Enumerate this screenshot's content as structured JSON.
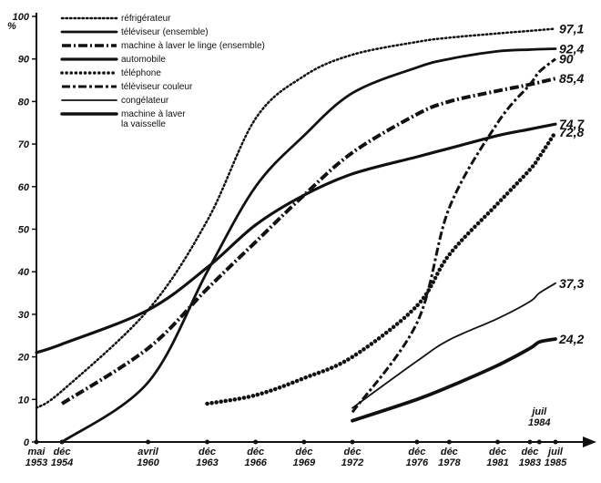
{
  "chart_data": {
    "type": "line",
    "y_unit": "%",
    "ylim": [
      0,
      100
    ],
    "y_ticks": [
      0,
      10,
      20,
      30,
      40,
      50,
      60,
      70,
      80,
      90,
      100
    ],
    "x_ticks": [
      {
        "label": "mai 1953",
        "date": "1953-05"
      },
      {
        "label": "déc 1954",
        "date": "1954-12"
      },
      {
        "label": "avril 1960",
        "date": "1960-04"
      },
      {
        "label": "déc 1963",
        "date": "1963-12"
      },
      {
        "label": "déc 1966",
        "date": "1966-12"
      },
      {
        "label": "déc 1969",
        "date": "1969-12"
      },
      {
        "label": "déc 1972",
        "date": "1972-12"
      },
      {
        "label": "déc 1976",
        "date": "1976-12"
      },
      {
        "label": "déc 1978",
        "date": "1978-12"
      },
      {
        "label": "déc 1981",
        "date": "1981-12"
      },
      {
        "label": "déc 1983",
        "date": "1983-12"
      },
      {
        "label": "juil 1984",
        "date": "1984-07"
      },
      {
        "label": "juil 1985",
        "date": "1985-07"
      }
    ],
    "legend_position": "top-left",
    "grid": false,
    "series": [
      {
        "name": "réfrigérateur",
        "end_label": "97,1",
        "points": [
          [
            "1953-05",
            8
          ],
          [
            "1954-12",
            12
          ],
          [
            "1960-04",
            31
          ],
          [
            "1963-12",
            52
          ],
          [
            "1966-12",
            76
          ],
          [
            "1969-12",
            86
          ],
          [
            "1972-12",
            91
          ],
          [
            "1976-12",
            94
          ],
          [
            "1978-12",
            95
          ],
          [
            "1981-12",
            96
          ],
          [
            "1983-12",
            96.6
          ],
          [
            "1985-07",
            97.1
          ]
        ]
      },
      {
        "name": "téléviseur (ensemble)",
        "end_label": "92,4",
        "points": [
          [
            "1954-12",
            0
          ],
          [
            "1960-04",
            14
          ],
          [
            "1963-12",
            40
          ],
          [
            "1966-12",
            60
          ],
          [
            "1969-12",
            72
          ],
          [
            "1972-12",
            82
          ],
          [
            "1976-12",
            88
          ],
          [
            "1978-12",
            90
          ],
          [
            "1981-12",
            91.8
          ],
          [
            "1983-12",
            92.2
          ],
          [
            "1985-07",
            92.4
          ]
        ]
      },
      {
        "name": "machine à laver le linge (ensemble)",
        "end_label": "85,4",
        "points": [
          [
            "1954-12",
            9
          ],
          [
            "1960-04",
            22
          ],
          [
            "1963-12",
            36
          ],
          [
            "1966-12",
            47
          ],
          [
            "1969-12",
            58
          ],
          [
            "1972-12",
            68
          ],
          [
            "1976-12",
            77
          ],
          [
            "1978-12",
            80
          ],
          [
            "1981-12",
            82.5
          ],
          [
            "1983-12",
            84
          ],
          [
            "1985-07",
            85.4
          ]
        ]
      },
      {
        "name": "automobile",
        "end_label": "74,7",
        "points": [
          [
            "1953-05",
            21
          ],
          [
            "1954-12",
            23
          ],
          [
            "1960-04",
            31
          ],
          [
            "1963-12",
            41
          ],
          [
            "1966-12",
            51
          ],
          [
            "1969-12",
            58
          ],
          [
            "1972-12",
            63
          ],
          [
            "1976-12",
            67
          ],
          [
            "1978-12",
            69
          ],
          [
            "1981-12",
            72
          ],
          [
            "1983-12",
            73.5
          ],
          [
            "1985-07",
            74.7
          ]
        ]
      },
      {
        "name": "téléphone",
        "end_label": "72,8",
        "points": [
          [
            "1963-12",
            9
          ],
          [
            "1966-12",
            11
          ],
          [
            "1969-12",
            15
          ],
          [
            "1972-12",
            20
          ],
          [
            "1976-12",
            32
          ],
          [
            "1978-12",
            44
          ],
          [
            "1981-12",
            56
          ],
          [
            "1983-12",
            64
          ],
          [
            "1984-07",
            67
          ],
          [
            "1985-07",
            72.8
          ]
        ]
      },
      {
        "name": "téléviseur couleur",
        "end_label": "90",
        "points": [
          [
            "1972-12",
            7
          ],
          [
            "1976-12",
            28
          ],
          [
            "1978-12",
            55
          ],
          [
            "1981-12",
            75
          ],
          [
            "1983-12",
            84
          ],
          [
            "1984-07",
            87
          ],
          [
            "1985-07",
            90
          ]
        ]
      },
      {
        "name": "congélateur",
        "end_label": "37,3",
        "points": [
          [
            "1972-12",
            8
          ],
          [
            "1976-12",
            19
          ],
          [
            "1978-12",
            24
          ],
          [
            "1981-12",
            29
          ],
          [
            "1983-12",
            33
          ],
          [
            "1984-07",
            35
          ],
          [
            "1985-07",
            37.3
          ]
        ]
      },
      {
        "name": "machine à laver la vaisselle",
        "end_label": "24,2",
        "points": [
          [
            "1972-12",
            5
          ],
          [
            "1976-12",
            10
          ],
          [
            "1978-12",
            13
          ],
          [
            "1981-12",
            18
          ],
          [
            "1983-12",
            22
          ],
          [
            "1984-07",
            23.5
          ],
          [
            "1985-07",
            24.2
          ]
        ]
      }
    ]
  }
}
